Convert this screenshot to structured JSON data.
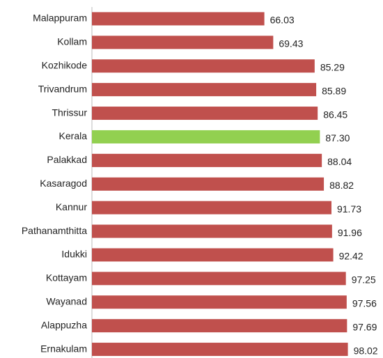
{
  "chart_data": {
    "type": "bar",
    "orientation": "horizontal",
    "categories": [
      "Malappuram",
      "Kollam",
      "Kozhikode",
      "Trivandrum",
      "Thrissur",
      "Kerala",
      "Palakkad",
      "Kasaragod",
      "Kannur",
      "Pathanamthitta",
      "Idukki",
      "Kottayam",
      "Wayanad",
      "Alappuzha",
      "Ernakulam"
    ],
    "values": [
      66.03,
      69.43,
      85.29,
      85.89,
      86.45,
      87.3,
      88.04,
      88.82,
      91.73,
      91.96,
      92.42,
      97.25,
      97.56,
      97.69,
      98.02
    ],
    "value_labels": [
      "66.03",
      "69.43",
      "85.29",
      "85.89",
      "86.45",
      "87.30",
      "88.04",
      "88.82",
      "91.73",
      "91.96",
      "92.42",
      "97.25",
      "97.56",
      "97.69",
      "98.02"
    ],
    "colors": [
      "#c0504d",
      "#c0504d",
      "#c0504d",
      "#c0504d",
      "#c0504d",
      "#92d050",
      "#c0504d",
      "#c0504d",
      "#c0504d",
      "#c0504d",
      "#c0504d",
      "#c0504d",
      "#c0504d",
      "#c0504d",
      "#c0504d"
    ],
    "xlim": [
      0,
      100
    ]
  }
}
